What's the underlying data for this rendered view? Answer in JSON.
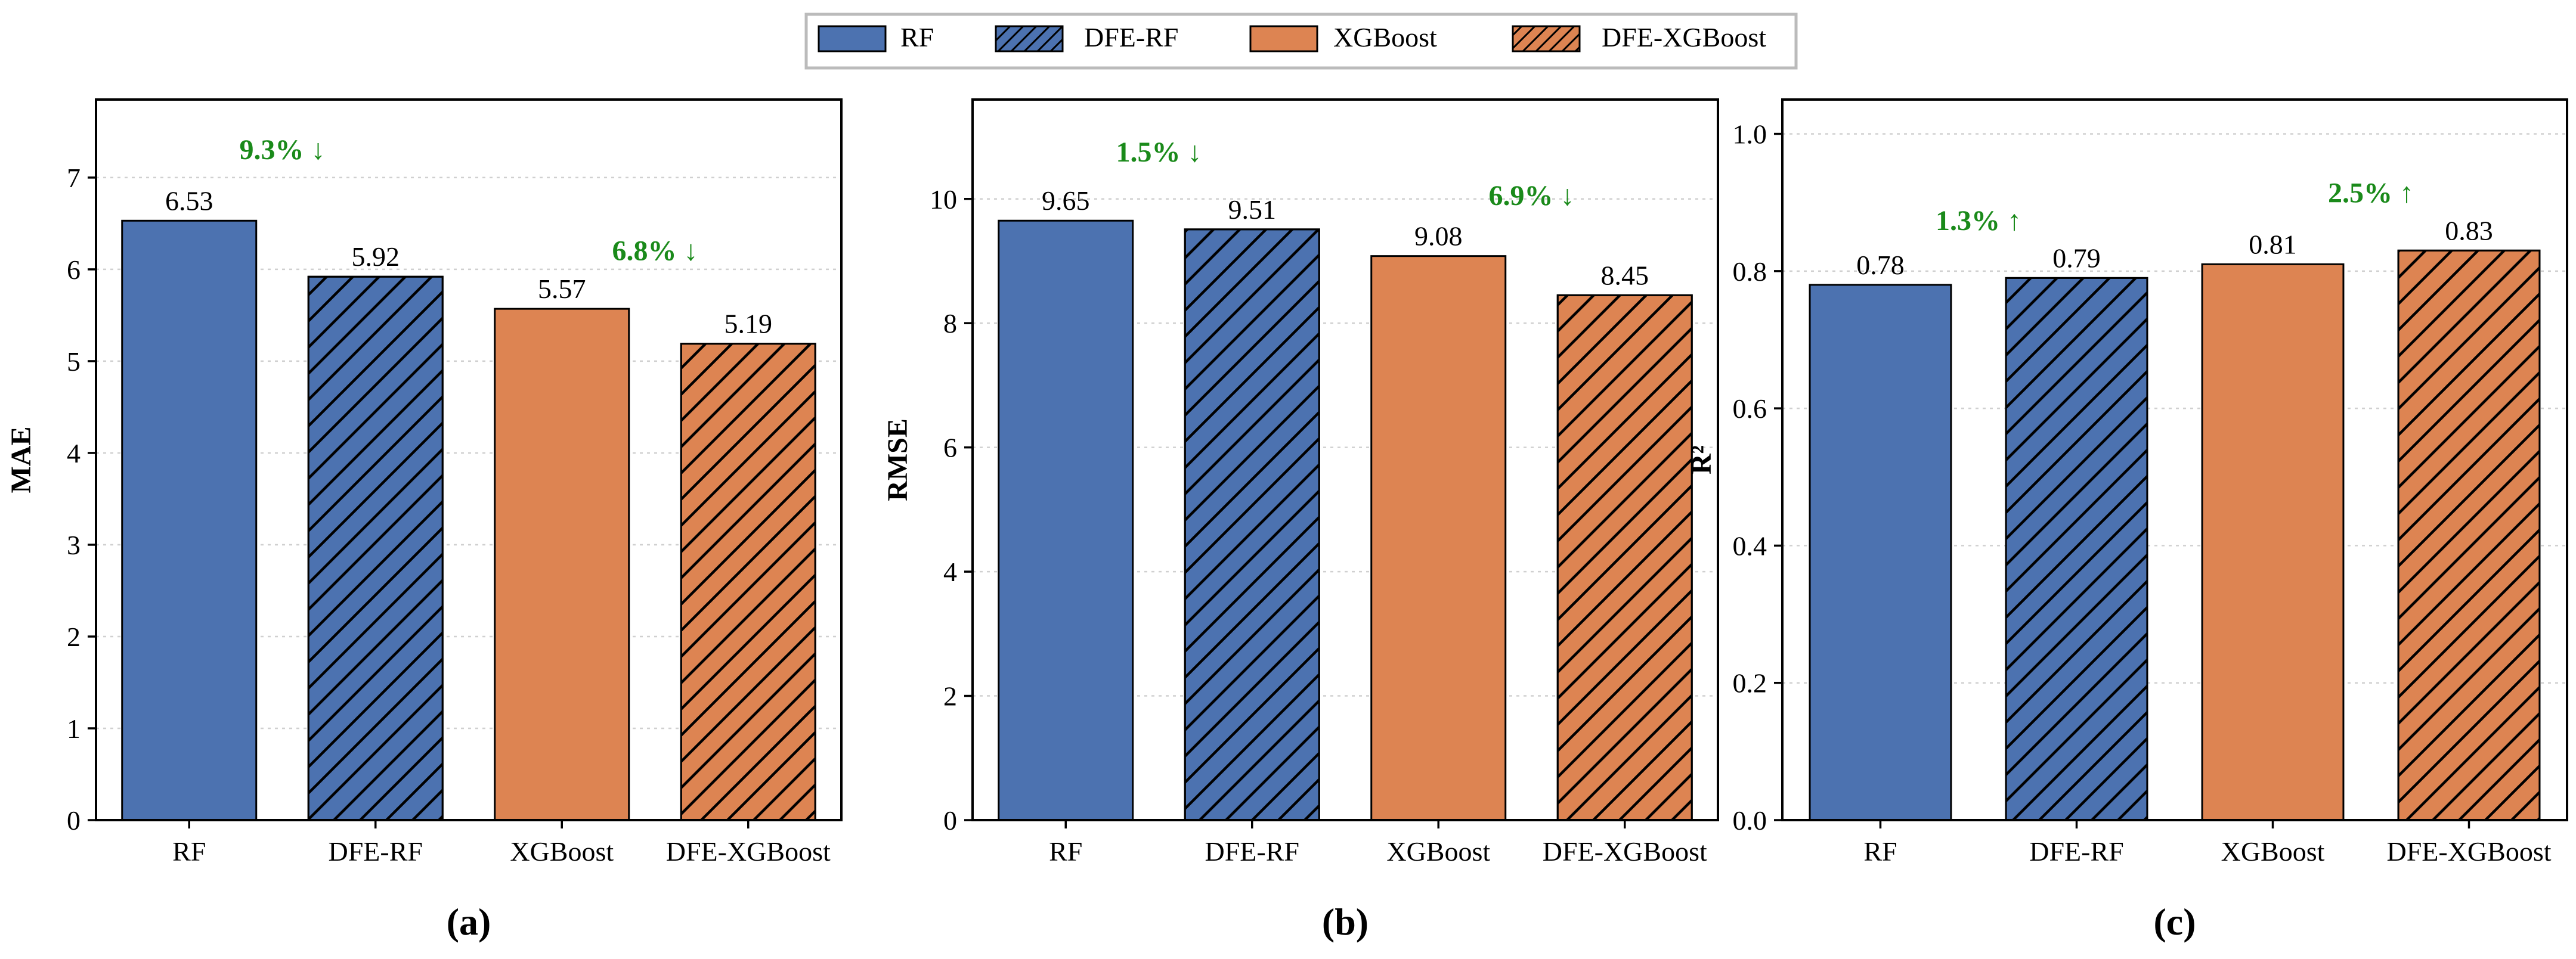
{
  "legend": {
    "items": [
      {
        "label": "RF",
        "color": "#4C72B0",
        "hatch": false
      },
      {
        "label": "DFE-RF",
        "color": "#4C72B0",
        "hatch": true
      },
      {
        "label": "XGBoost",
        "color": "#DD8452",
        "hatch": false
      },
      {
        "label": "DFE-XGBoost",
        "color": "#DD8452",
        "hatch": true
      }
    ],
    "placement": "top-center"
  },
  "colors": {
    "rf": "#4C72B0",
    "xgb": "#DD8452",
    "annotation": "#1A8A1A",
    "grid": "#D0D0D0"
  },
  "chart_data": [
    {
      "type": "bar",
      "panel_label": "(a)",
      "categories": [
        "RF",
        "DFE-RF",
        "XGBoost",
        "DFE-XGBoost"
      ],
      "values": [
        6.53,
        5.92,
        5.57,
        5.19
      ],
      "value_labels": [
        "6.53",
        "5.92",
        "5.57",
        "5.19"
      ],
      "ylabel": "MAE",
      "ylim": [
        0,
        7.85
      ],
      "yticks": [
        0,
        1,
        2,
        3,
        4,
        5,
        6,
        7
      ],
      "ytick_labels": [
        "0",
        "1",
        "2",
        "3",
        "4",
        "5",
        "6",
        "7"
      ],
      "grid": "horizontal-dotted",
      "annotations": [
        {
          "text": "9.3% ↓",
          "x": 0.5,
          "y": 7.2
        },
        {
          "text": "6.8% ↓",
          "x": 2.5,
          "y": 6.1
        }
      ]
    },
    {
      "type": "bar",
      "panel_label": "(b)",
      "categories": [
        "RF",
        "DFE-RF",
        "XGBoost",
        "DFE-XGBoost"
      ],
      "values": [
        9.65,
        9.51,
        9.08,
        8.45
      ],
      "value_labels": [
        "9.65",
        "9.51",
        "9.08",
        "8.45"
      ],
      "ylabel": "RMSE",
      "ylim": [
        0,
        11.6
      ],
      "yticks": [
        0,
        2,
        4,
        6,
        8,
        10
      ],
      "ytick_labels": [
        "0",
        "2",
        "4",
        "6",
        "8",
        "10"
      ],
      "grid": "horizontal-dotted",
      "annotations": [
        {
          "text": "1.5% ↓",
          "x": 0.5,
          "y": 10.6
        },
        {
          "text": "6.9% ↓",
          "x": 2.5,
          "y": 9.9
        }
      ]
    },
    {
      "type": "bar",
      "panel_label": "(c)",
      "categories": [
        "RF",
        "DFE-RF",
        "XGBoost",
        "DFE-XGBoost"
      ],
      "values": [
        0.78,
        0.79,
        0.81,
        0.83
      ],
      "value_labels": [
        "0.78",
        "0.79",
        "0.81",
        "0.83"
      ],
      "ylabel": "R²",
      "ylim": [
        0,
        1.05
      ],
      "yticks": [
        0.0,
        0.2,
        0.4,
        0.6,
        0.8,
        1.0
      ],
      "ytick_labels": [
        "0.0",
        "0.2",
        "0.4",
        "0.6",
        "0.8",
        "1.0"
      ],
      "grid": "horizontal-dotted",
      "annotations": [
        {
          "text": "1.3% ↑",
          "x": 0.5,
          "y": 0.86
        },
        {
          "text": "2.5% ↑",
          "x": 2.5,
          "y": 0.9
        }
      ]
    }
  ]
}
